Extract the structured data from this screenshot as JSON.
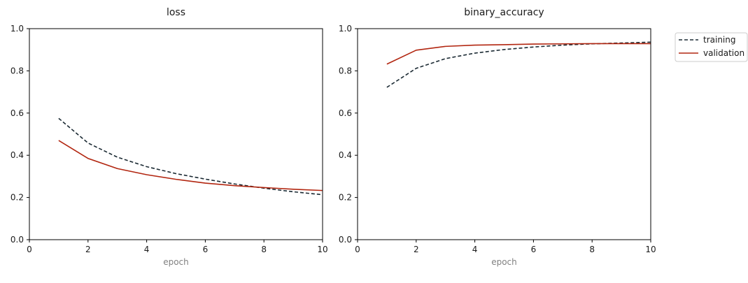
{
  "chart_data": [
    {
      "type": "line",
      "title": "loss",
      "xlabel": "epoch",
      "ylabel": "",
      "xlim": [
        0,
        10
      ],
      "ylim": [
        0.0,
        1.0
      ],
      "xticks": [
        "0",
        "2",
        "4",
        "6",
        "8",
        "10"
      ],
      "yticks": [
        "0.0",
        "0.2",
        "0.4",
        "0.6",
        "0.8",
        "1.0"
      ],
      "grid": false,
      "x": [
        1,
        2,
        3,
        4,
        5,
        6,
        7,
        8,
        9,
        10
      ],
      "series": [
        {
          "name": "training",
          "color": "#1b2a33",
          "style": "dashed",
          "values": [
            0.575,
            0.458,
            0.391,
            0.346,
            0.313,
            0.287,
            0.264,
            0.244,
            0.227,
            0.213
          ]
        },
        {
          "name": "validation",
          "color": "#b22610",
          "style": "solid",
          "values": [
            0.47,
            0.385,
            0.337,
            0.308,
            0.286,
            0.268,
            0.256,
            0.247,
            0.239,
            0.233
          ]
        }
      ]
    },
    {
      "type": "line",
      "title": "binary_accuracy",
      "xlabel": "epoch",
      "ylabel": "",
      "xlim": [
        0,
        10
      ],
      "ylim": [
        0.0,
        1.0
      ],
      "xticks": [
        "0",
        "2",
        "4",
        "6",
        "8",
        "10"
      ],
      "yticks": [
        "0.0",
        "0.2",
        "0.4",
        "0.6",
        "0.8",
        "1.0"
      ],
      "grid": false,
      "x": [
        1,
        2,
        3,
        4,
        5,
        6,
        7,
        8,
        9,
        10
      ],
      "series": [
        {
          "name": "training",
          "color": "#1b2a33",
          "style": "dashed",
          "values": [
            0.722,
            0.812,
            0.858,
            0.884,
            0.901,
            0.913,
            0.922,
            0.928,
            0.932,
            0.936
          ]
        },
        {
          "name": "validation",
          "color": "#b22610",
          "style": "solid",
          "values": [
            0.832,
            0.898,
            0.916,
            0.922,
            0.924,
            0.927,
            0.928,
            0.929,
            0.929,
            0.929
          ]
        }
      ]
    }
  ],
  "legend": {
    "placement": "right",
    "entries": [
      {
        "label": "training",
        "color": "#1b2a33",
        "style": "dashed"
      },
      {
        "label": "validation",
        "color": "#b22610",
        "style": "solid"
      }
    ]
  }
}
